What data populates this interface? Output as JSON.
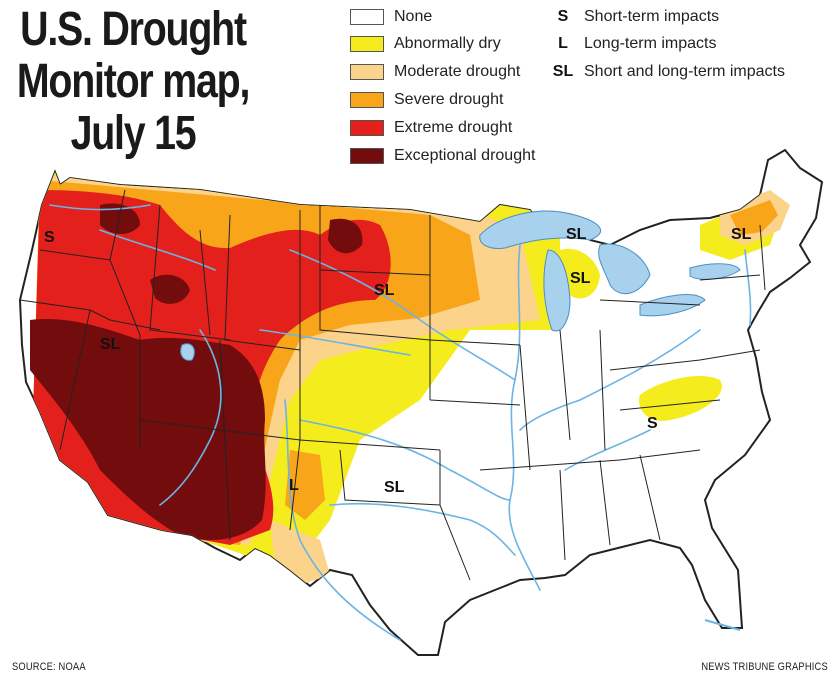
{
  "title": {
    "line1": "U.S. Drought",
    "line2": "Monitor map,",
    "line3": "July 15"
  },
  "legend": [
    {
      "label": "None",
      "color": "#ffffff"
    },
    {
      "label": "Abnormally dry",
      "color": "#f5ec1e"
    },
    {
      "label": "Moderate drought",
      "color": "#fcd38a"
    },
    {
      "label": "Severe drought",
      "color": "#f9a51a"
    },
    {
      "label": "Extreme drought",
      "color": "#e3201b"
    },
    {
      "label": "Exceptional drought",
      "color": "#730c0c"
    }
  ],
  "impacts": [
    {
      "code": "S",
      "label": "Short-term impacts"
    },
    {
      "code": "L",
      "label": "Long-term impacts"
    },
    {
      "code": "SL",
      "label": "Short and long-term impacts"
    }
  ],
  "map_labels": [
    "S",
    "SL",
    "SL",
    "SL",
    "SL",
    "SL",
    "SL",
    "S",
    "L",
    "SL"
  ],
  "colors": {
    "water": "#a8d1ee",
    "border": "#222222",
    "river": "#6bb4e3"
  },
  "footer": {
    "source": "SOURCE: NOAA",
    "credit": "NEWS TRIBUNE GRAPHICS"
  }
}
